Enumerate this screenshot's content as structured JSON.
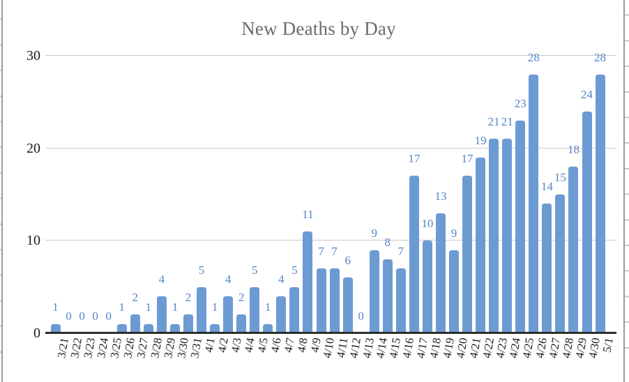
{
  "title": "New Deaths by Day",
  "chart_data": {
    "type": "bar",
    "title": "New Deaths by Day",
    "categories": [
      "3/21",
      "3/22",
      "3/23",
      "3/24",
      "3/25",
      "3/26",
      "3/27",
      "3/28",
      "3/29",
      "3/30",
      "3/31",
      "4/1",
      "4/2",
      "4/3",
      "4/4",
      "4/5",
      "4/6",
      "4/7",
      "4/8",
      "4/9",
      "4/10",
      "4/11",
      "4/12",
      "4/13",
      "4/14",
      "4/15",
      "4/16",
      "4/17",
      "4/18",
      "4/19",
      "4/20",
      "4/21",
      "4/22",
      "4/23",
      "4/24",
      "4/25",
      "4/26",
      "4/27",
      "4/28",
      "4/29",
      "4/30",
      "5/1"
    ],
    "values": [
      1,
      0,
      0,
      0,
      0,
      1,
      2,
      1,
      4,
      1,
      2,
      5,
      1,
      4,
      2,
      5,
      1,
      4,
      5,
      11,
      7,
      7,
      6,
      0,
      9,
      8,
      7,
      17,
      10,
      13,
      9,
      17,
      19,
      21,
      21,
      23,
      28,
      14,
      15,
      18,
      24,
      28
    ],
    "xlabel": "",
    "ylabel": "",
    "ylim": [
      0,
      30
    ],
    "yticks": [
      0,
      10,
      20,
      30
    ],
    "grid": "horizontal",
    "legend_position": "none",
    "data_labels": true,
    "colors": {
      "bar": "#6c9bd3",
      "data_label": "#5585c4",
      "title": "#6b6b6b",
      "axis_text": "#1a1a1a",
      "gridline": "#c9c9c9",
      "axis_line": "#2e2e2e"
    }
  }
}
